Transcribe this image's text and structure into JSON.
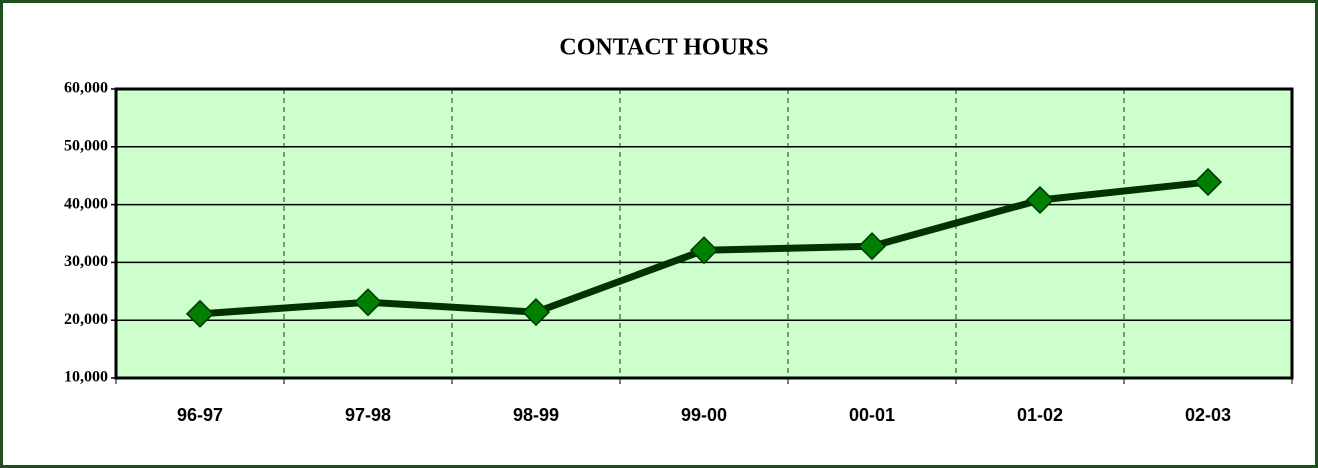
{
  "chart_data": {
    "type": "line",
    "title": "CONTACT HOURS",
    "categories": [
      "96-97",
      "97-98",
      "98-99",
      "99-00",
      "00-01",
      "01-02",
      "02-03"
    ],
    "series": [
      {
        "name": "Contact Hours",
        "color": "#008000",
        "line_color": "#003300",
        "values": [
          21100,
          23100,
          21400,
          32100,
          32800,
          40800,
          43900
        ]
      }
    ],
    "ylim": [
      10000,
      60000
    ],
    "yticks": [
      {
        "value": 10000,
        "label": "10,000"
      },
      {
        "value": 20000,
        "label": "20,000"
      },
      {
        "value": 30000,
        "label": "30,000"
      },
      {
        "value": 40000,
        "label": "40,000"
      },
      {
        "value": 50000,
        "label": "50,000"
      },
      {
        "value": 60000,
        "label": "60,000"
      }
    ],
    "grid": true,
    "plot_background": "#ccffcc"
  }
}
